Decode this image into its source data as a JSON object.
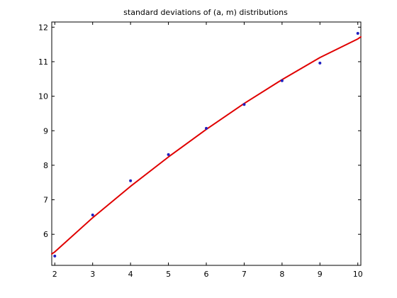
{
  "chart_data": {
    "type": "scatter",
    "title": "standard deviations of (a, m) distributions",
    "xlabel": "",
    "ylabel": "",
    "xlim": [
      1.92,
      10.08
    ],
    "ylim": [
      5.1,
      12.15
    ],
    "x_ticks": [
      2,
      3,
      4,
      5,
      6,
      7,
      8,
      9,
      10
    ],
    "y_ticks": [
      6,
      7,
      8,
      9,
      10,
      11,
      12
    ],
    "x_tick_labels": [
      "2",
      "3",
      "4",
      "5",
      "6",
      "7",
      "8",
      "9",
      "10"
    ],
    "y_tick_labels": [
      "6",
      "7",
      "8",
      "9",
      "10",
      "11",
      "12"
    ],
    "grid": false,
    "series": [
      {
        "kind": "points",
        "color": "#2020c0",
        "x": [
          2,
          3,
          4,
          5,
          6,
          7,
          8,
          9,
          10
        ],
        "y": [
          5.37,
          6.56,
          7.55,
          8.31,
          9.07,
          9.76,
          10.45,
          10.96,
          11.82
        ]
      },
      {
        "kind": "fit-line",
        "color": "#e00000",
        "x": [
          1.92,
          2,
          3,
          4,
          5,
          6,
          7,
          8,
          9,
          10,
          10.08
        ],
        "y": [
          5.43,
          5.49,
          6.48,
          7.39,
          8.24,
          9.04,
          9.79,
          10.48,
          11.12,
          11.66,
          11.72
        ]
      }
    ]
  }
}
